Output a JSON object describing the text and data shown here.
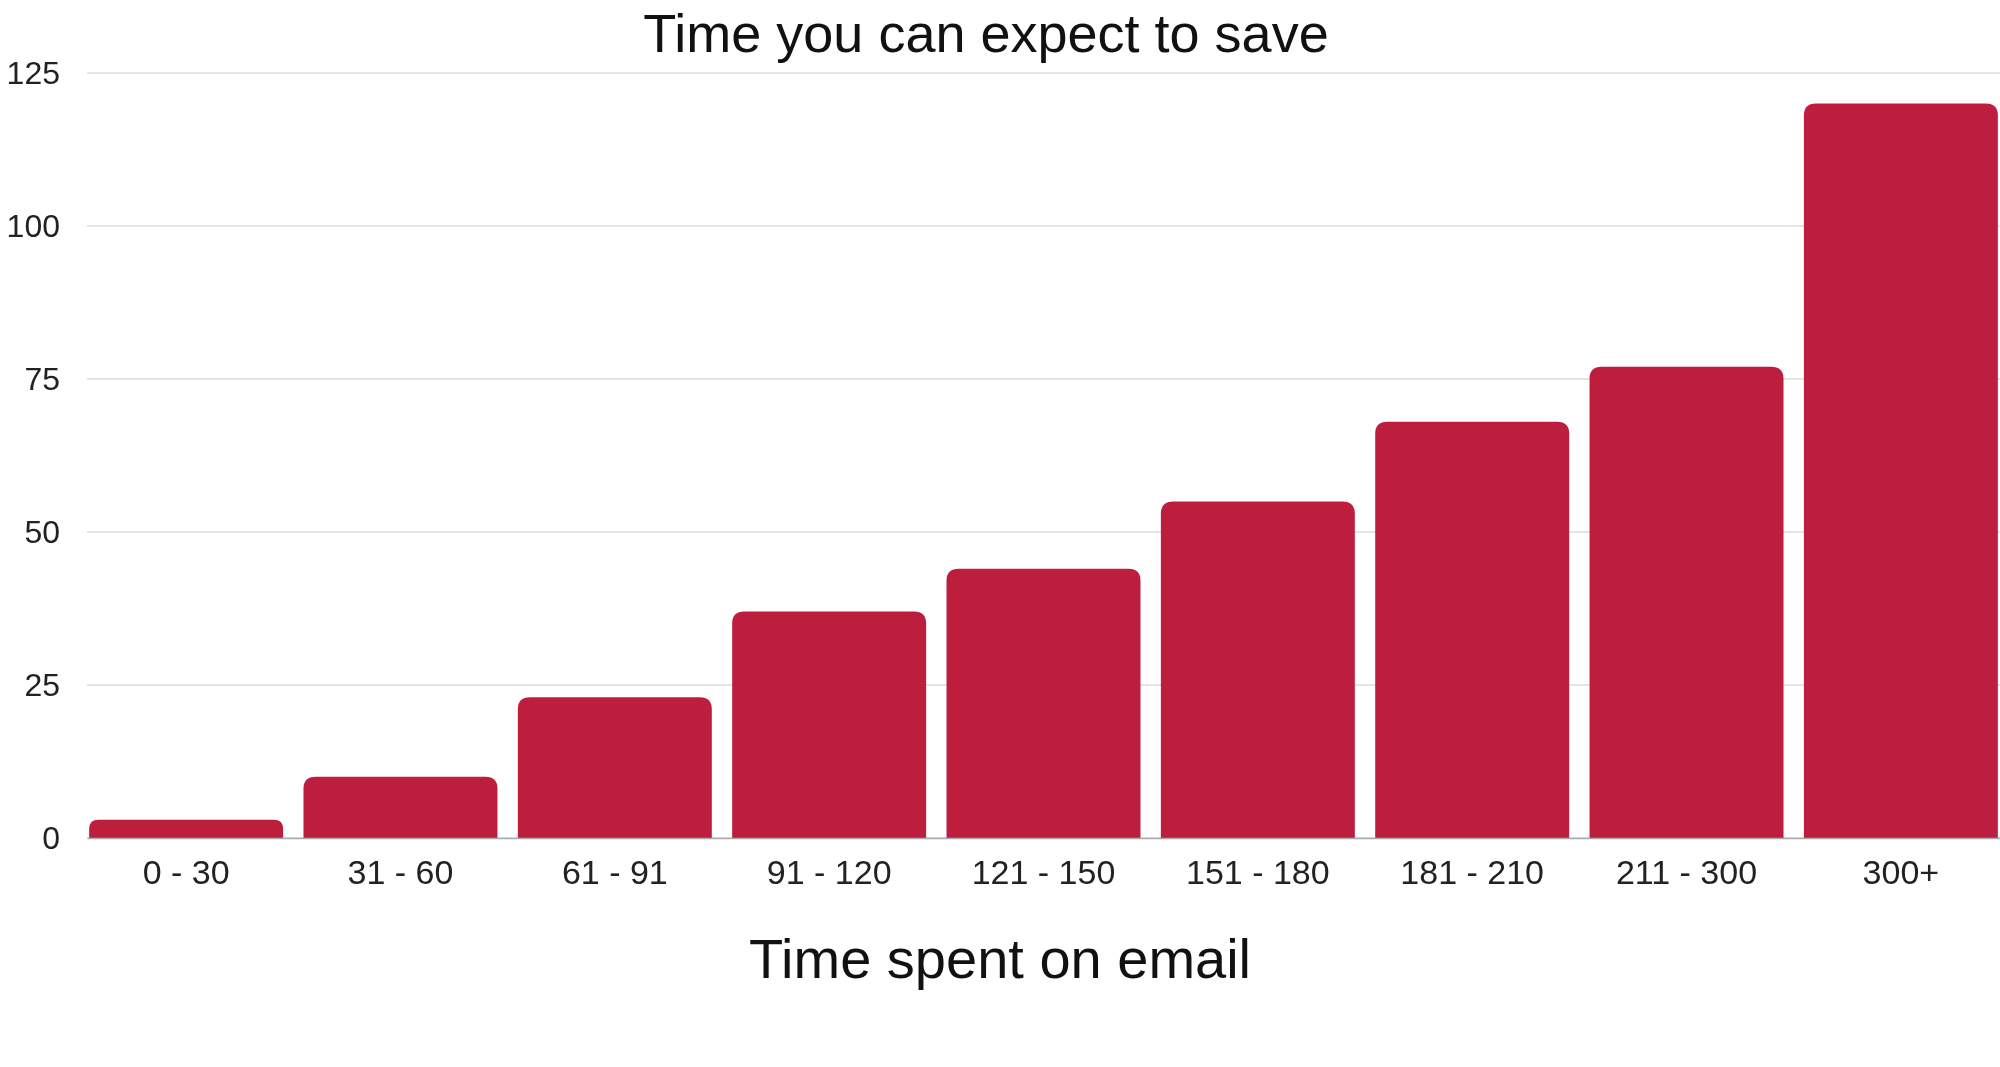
{
  "chart_data": {
    "type": "bar",
    "title": "Time you can expect to save",
    "xlabel": "Time spent on email",
    "categories": [
      "0 - 30",
      "31 - 60",
      "61 - 91",
      "91 - 120",
      "121 - 150",
      "151 - 180",
      "181 - 210",
      "211 - 300",
      "300+"
    ],
    "values": [
      3,
      10,
      23,
      37,
      44,
      55,
      68,
      77,
      120
    ],
    "color": "#be1e3e",
    "ylim": [
      0,
      125
    ],
    "yticks": [
      0,
      25,
      50,
      75,
      100,
      125
    ],
    "grid": "y"
  }
}
